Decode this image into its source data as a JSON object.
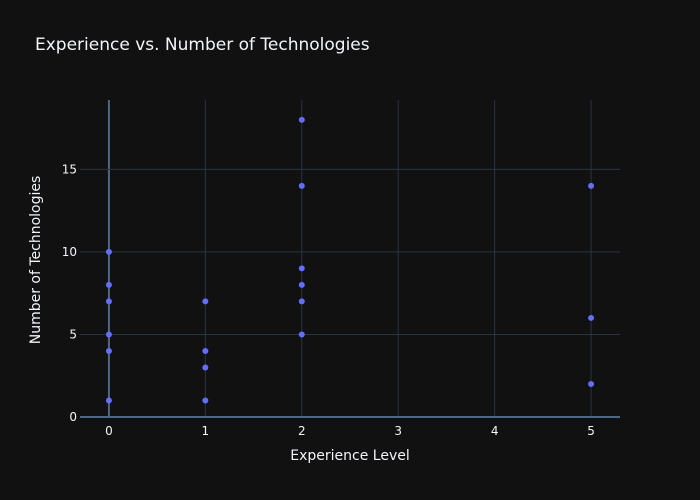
{
  "chart_data": {
    "type": "scatter",
    "title": "Experience vs. Number of Technologies",
    "xlabel": "Experience Level",
    "ylabel": "Number of Technologies",
    "xlim": [
      -0.3,
      5.3
    ],
    "ylim": [
      0,
      19.2
    ],
    "xticks": [
      0,
      1,
      2,
      3,
      4,
      5
    ],
    "yticks": [
      0,
      5,
      10,
      15
    ],
    "grid": true,
    "legend": "none",
    "series": [
      {
        "color": "#636efa",
        "points": [
          {
            "x": 0,
            "y": 10
          },
          {
            "x": 0,
            "y": 8
          },
          {
            "x": 0,
            "y": 7
          },
          {
            "x": 0,
            "y": 5
          },
          {
            "x": 0,
            "y": 4
          },
          {
            "x": 0,
            "y": 1
          },
          {
            "x": 1,
            "y": 7
          },
          {
            "x": 1,
            "y": 4
          },
          {
            "x": 1,
            "y": 3
          },
          {
            "x": 1,
            "y": 1
          },
          {
            "x": 2,
            "y": 18
          },
          {
            "x": 2,
            "y": 14
          },
          {
            "x": 2,
            "y": 9
          },
          {
            "x": 2,
            "y": 8
          },
          {
            "x": 2,
            "y": 7
          },
          {
            "x": 2,
            "y": 5
          },
          {
            "x": 5,
            "y": 14
          },
          {
            "x": 5,
            "y": 6
          },
          {
            "x": 5,
            "y": 2
          }
        ]
      }
    ]
  },
  "colors": {
    "background": "#111111",
    "grid": "#283442",
    "zeroline": "#506784",
    "text": "#f2f5fa",
    "marker": "#636efa"
  }
}
